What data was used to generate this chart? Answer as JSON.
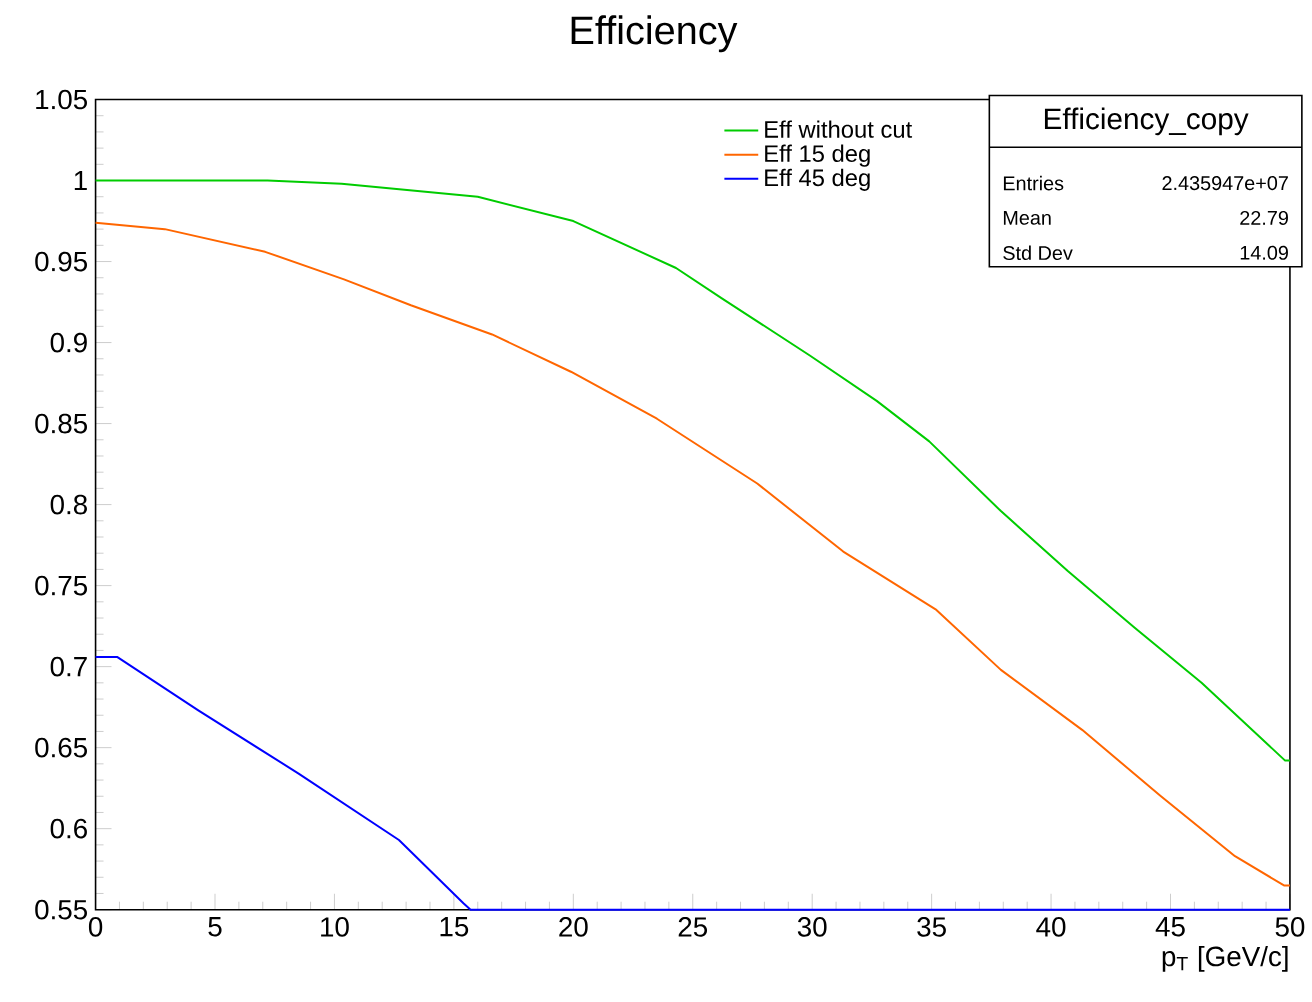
{
  "chart_data": {
    "type": "line",
    "title": "Efficiency",
    "xlabel": "p$_{T}$ [GeV/c]",
    "annotations": [
      "Efficiency_copy",
      "Entries",
      "2.435947e+07",
      "Mean",
      "22.79",
      "Std Dev",
      "14.09"
    ],
    "xlim": [
      0,
      50
    ],
    "ylim": [
      0.55,
      1.05
    ],
    "xticks": [
      0,
      5,
      10,
      15,
      20,
      25,
      30,
      35,
      40,
      45,
      50
    ],
    "yticks": [
      0.55,
      0.6,
      0.65,
      0.7,
      0.75,
      0.8,
      0.85,
      0.9,
      0.95,
      1,
      1.05
    ],
    "legend": "top",
    "grid": false,
    "series": [
      {
        "name": "Eff without cut",
        "color": "#00cc00",
        "x": [
          0,
          7.2,
          10.3,
          16,
          20,
          24.3,
          26.25,
          29.9,
          32.7,
          34.9,
          37.9,
          40.7,
          43.5,
          46.3,
          49.8,
          50
        ],
        "values": [
          1.0,
          1.0,
          0.998,
          0.99,
          0.975,
          0.946,
          0.927,
          0.892,
          0.864,
          0.839,
          0.796,
          0.759,
          0.724,
          0.69,
          0.642,
          0.642
        ]
      },
      {
        "name": "Eff 15 deg",
        "color": "#ff6600",
        "x": [
          0,
          2.9,
          7.1,
          10.4,
          13.2,
          16.6,
          19.9,
          23.5,
          27.7,
          31.3,
          35.2,
          37.9,
          41.3,
          44.6,
          47.7,
          49.75,
          50
        ],
        "values": [
          0.974,
          0.97,
          0.956,
          0.939,
          0.923,
          0.905,
          0.882,
          0.853,
          0.813,
          0.771,
          0.735,
          0.698,
          0.661,
          0.62,
          0.583,
          0.565,
          0.565
        ]
      },
      {
        "name": "Eff 45 deg",
        "color": "#0000ff",
        "x": [
          0,
          0.9,
          4.3,
          8.5,
          12.7,
          15.4,
          15.7,
          50
        ],
        "values": [
          0.706,
          0.706,
          0.673,
          0.634,
          0.593,
          0.554,
          0.55,
          0.55
        ]
      }
    ]
  }
}
